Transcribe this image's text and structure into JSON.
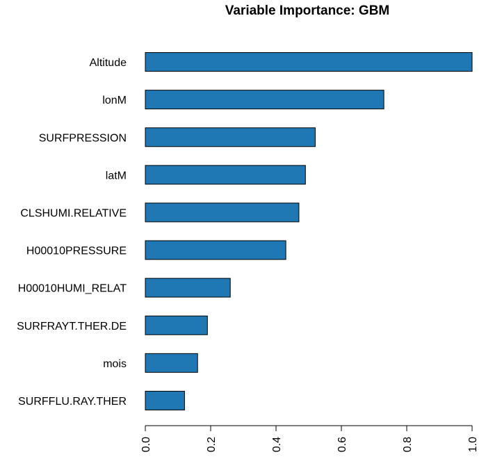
{
  "chart_data": {
    "type": "bar",
    "orientation": "horizontal",
    "title": "Variable Importance: GBM",
    "xlabel": "",
    "ylabel": "",
    "xlim": [
      0,
      1.0
    ],
    "xticks": [
      "0.0",
      "0.2",
      "0.4",
      "0.6",
      "0.8",
      "1.0"
    ],
    "categories": [
      "Altitude",
      "lonM",
      "SURFPRESSION",
      "latM",
      "CLSHUMI.RELATIVE",
      "H00010PRESSURE",
      "H00010HUMI_RELAT",
      "SURFRAYT.THER.DE",
      "mois",
      "SURFFLU.RAY.THER"
    ],
    "values": [
      1.0,
      0.73,
      0.52,
      0.49,
      0.47,
      0.43,
      0.26,
      0.19,
      0.16,
      0.12
    ],
    "bar_color": "#1f77b4",
    "grid": false,
    "legend": "none"
  }
}
